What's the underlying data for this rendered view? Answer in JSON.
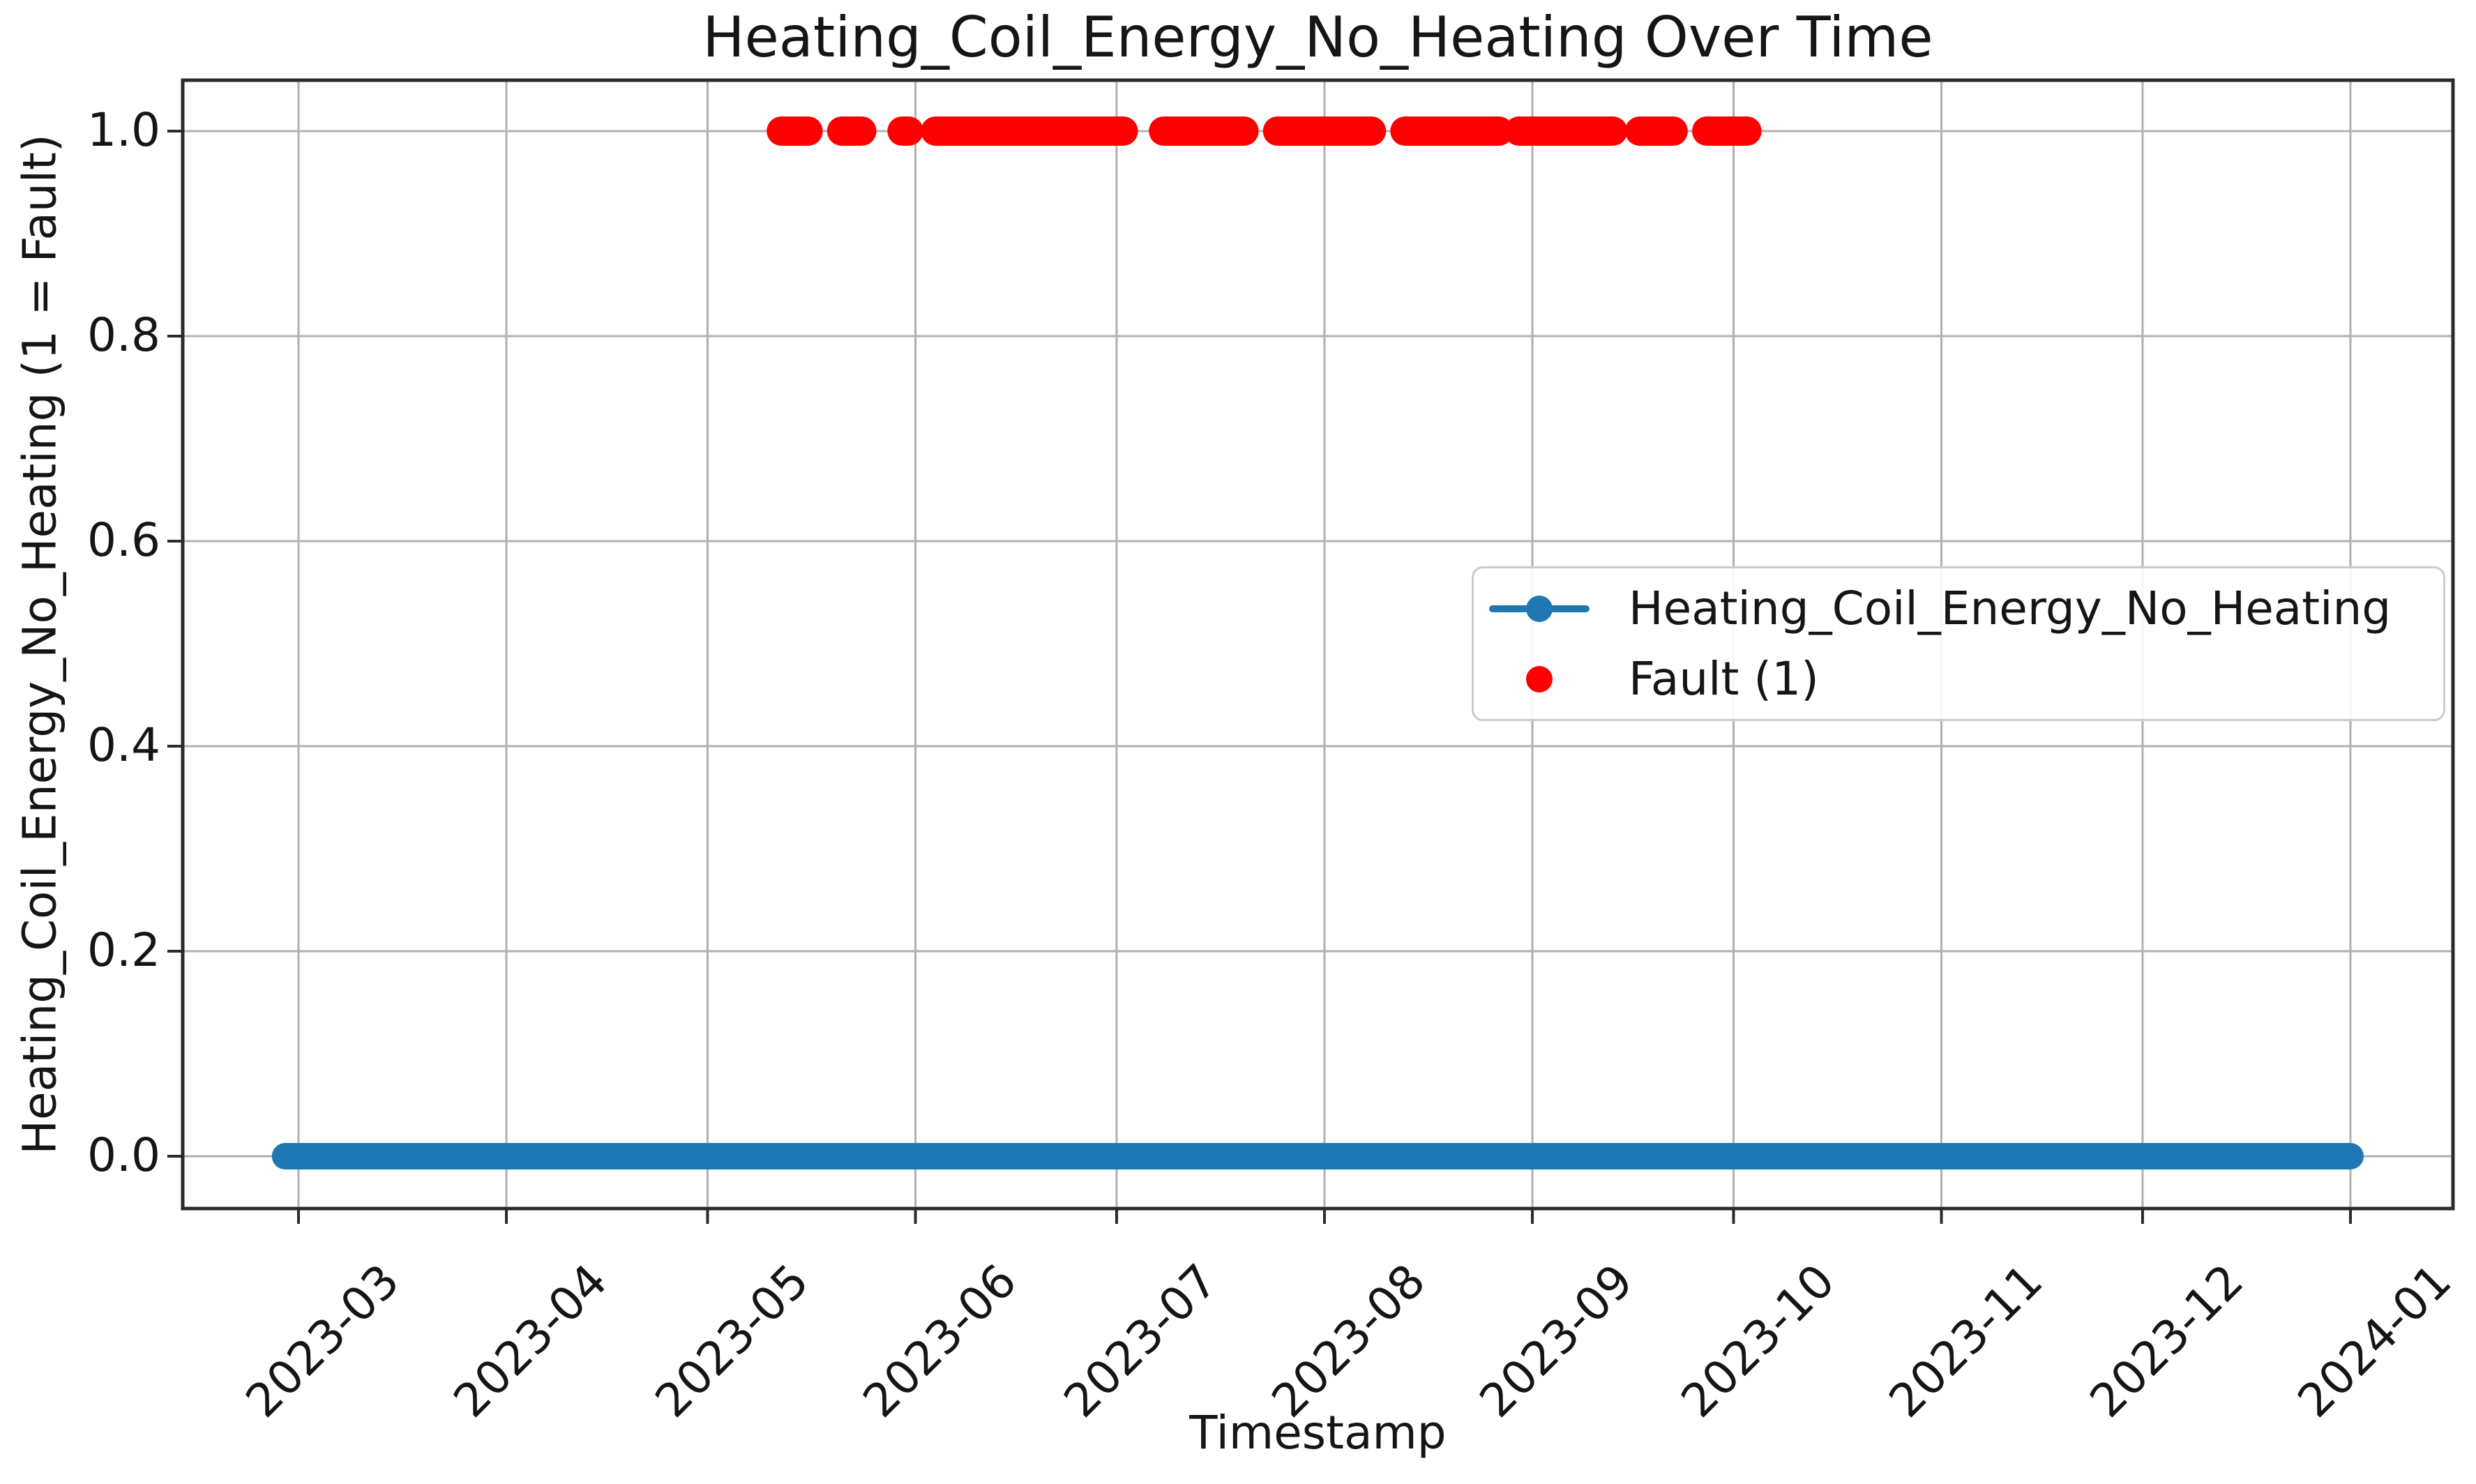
{
  "chart_data": {
    "type": "line",
    "title": "Heating_Coil_Energy_No_Heating Over Time",
    "xlabel": "Timestamp",
    "ylabel": "Heating_Coil_Energy_No_Heating (1 = Fault)",
    "grid": true,
    "background": "#ffffff",
    "colors": {
      "grid": "#b0b0b0",
      "spine": "#2b2b2b",
      "tick": "#2b2b2b"
    },
    "x_axis": {
      "tick_labels": [
        "2023-03",
        "2023-04",
        "2023-05",
        "2023-06",
        "2023-07",
        "2023-08",
        "2023-09",
        "2023-10",
        "2023-11",
        "2023-12",
        "2024-01"
      ],
      "xlim_dates": [
        "2023-02-11",
        "2024-01-16"
      ]
    },
    "y_axis": {
      "tick_labels": [
        "0.0",
        "0.2",
        "0.4",
        "0.6",
        "0.8",
        "1.0"
      ],
      "tick_values": [
        0.0,
        0.2,
        0.4,
        0.6,
        0.8,
        1.0
      ],
      "ylim": [
        -0.05,
        1.05
      ]
    },
    "series": [
      {
        "name": "Heating_Coil_Energy_No_Heating",
        "style": "line-with-circle-markers",
        "color": "#1f77b4",
        "value": 0.0,
        "start": "2023-02-27",
        "end": "2024-01-01"
      },
      {
        "name": "Fault (1)",
        "style": "scatter-dots",
        "color": "#ff0000",
        "value": 1.0,
        "fault_periods": [
          {
            "start": "2023-05-12",
            "end": "2023-05-16"
          },
          {
            "start": "2023-05-21",
            "end": "2023-05-24"
          },
          {
            "start": "2023-05-30",
            "end": "2023-05-31"
          },
          {
            "start": "2023-06-04",
            "end": "2023-07-02"
          },
          {
            "start": "2023-07-08",
            "end": "2023-07-20"
          },
          {
            "start": "2023-07-25",
            "end": "2023-08-08"
          },
          {
            "start": "2023-08-13",
            "end": "2023-08-27"
          },
          {
            "start": "2023-08-30",
            "end": "2023-09-13"
          },
          {
            "start": "2023-09-17",
            "end": "2023-09-22"
          },
          {
            "start": "2023-09-27",
            "end": "2023-10-03"
          }
        ]
      }
    ],
    "legend": {
      "position": "center-right",
      "entries": [
        {
          "label": "Heating_Coil_Energy_No_Heating",
          "marker": "line-with-circle",
          "color": "#1f77b4"
        },
        {
          "label": "Fault (1)",
          "marker": "circle",
          "color": "#ff0000"
        }
      ]
    }
  }
}
